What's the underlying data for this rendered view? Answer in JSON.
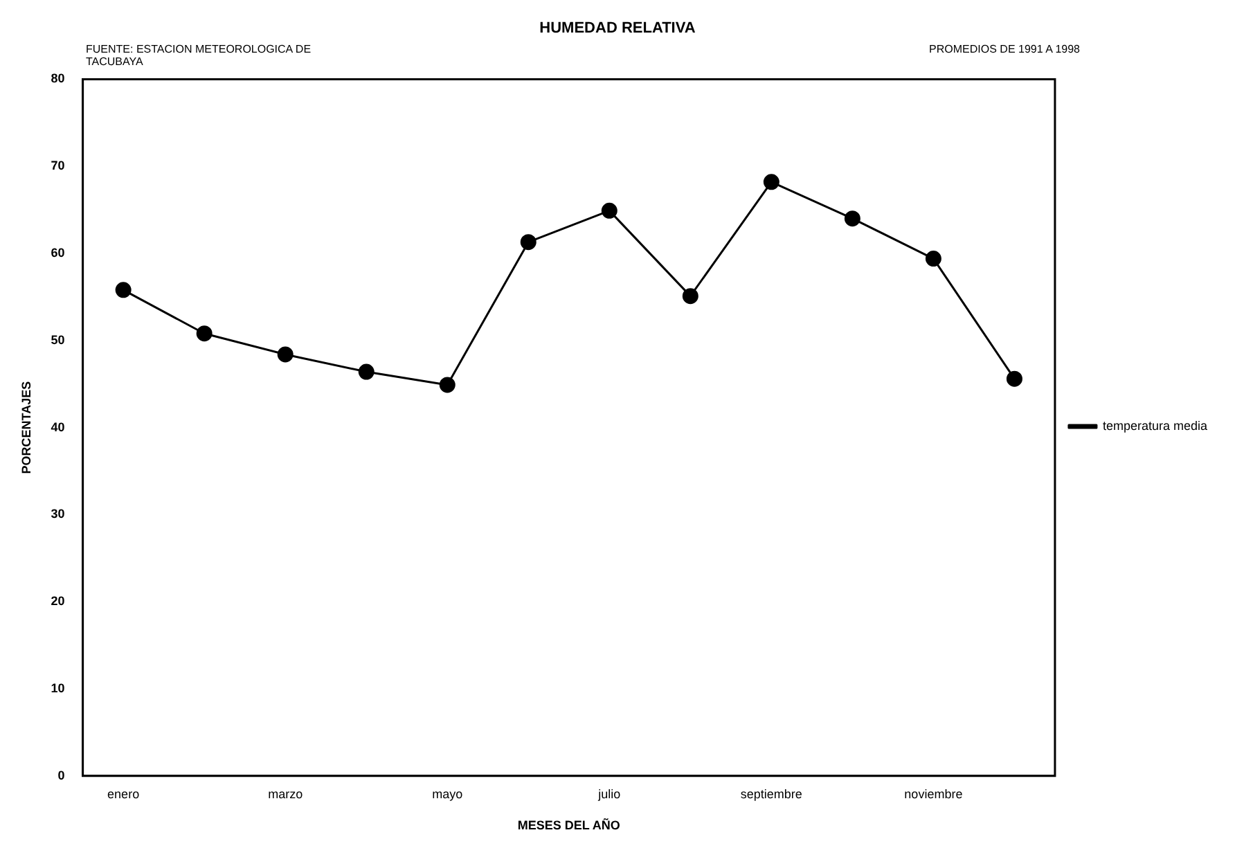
{
  "chart_data": {
    "type": "line",
    "title": "HUMEDAD RELATIVA",
    "xlabel": "MESES DEL AÑO",
    "ylabel": "PORCENTAJES",
    "annotations": [
      "FUENTE: ESTACION METEOROLOGICA DE TACUBAYA",
      "PROMEDIOS DE 1991 A 1998"
    ],
    "categories": [
      "enero",
      null,
      "marzo",
      null,
      "mayo",
      null,
      "julio",
      null,
      "septiembre",
      null,
      "noviembre",
      null
    ],
    "series": [
      {
        "name": "temperatura media",
        "color": "#000000",
        "values": [
          55.8,
          50.8,
          48.4,
          46.4,
          44.9,
          61.3,
          64.9,
          55.1,
          68.2,
          64.0,
          59.4,
          45.6
        ]
      }
    ],
    "ylim": [
      0,
      80
    ],
    "yticks": [
      0,
      10,
      20,
      30,
      40,
      50,
      60,
      70,
      80
    ],
    "grid": false,
    "legend": "right",
    "marker": "circle",
    "line_style": "solid"
  }
}
